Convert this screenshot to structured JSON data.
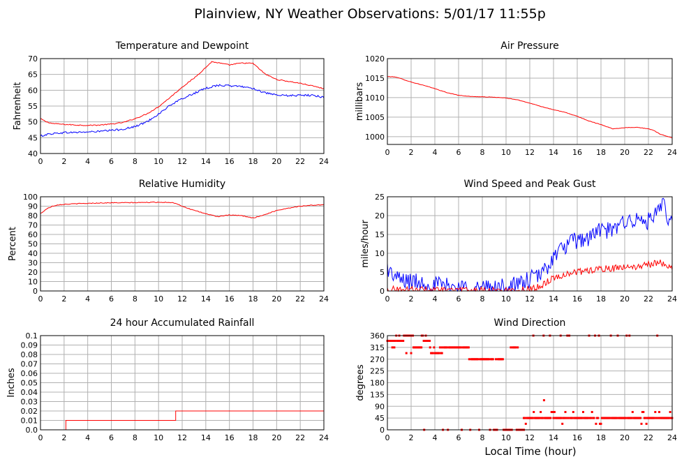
{
  "title": "Plainview, NY Weather Observations: 5/01/17 11:55p",
  "x_axis_label": "Local Time (hour)",
  "colors": {
    "primary": "#ff0000",
    "secondary": "#0000ff",
    "grid": "#b0b0b0",
    "frame": "#000000"
  },
  "chart_data": [
    {
      "id": "temperature",
      "type": "line",
      "title": "Temperature and Dewpoint",
      "xlabel": "",
      "ylabel": "Fahrenheit",
      "xlim": [
        0,
        24
      ],
      "ylim": [
        40,
        70
      ],
      "x_ticks": [
        "0",
        "2",
        "4",
        "6",
        "8",
        "10",
        "12",
        "14",
        "16",
        "18",
        "20",
        "22",
        "24"
      ],
      "y_ticks": [
        "40",
        "45",
        "50",
        "55",
        "60",
        "65",
        "70"
      ],
      "grid": true,
      "series": [
        {
          "color": "#ff0000",
          "noise": 0.15,
          "x": [
            0,
            0.5,
            1,
            2,
            3,
            4,
            5,
            6,
            7,
            8,
            9,
            10,
            11,
            12,
            13,
            14,
            14.5,
            15,
            16,
            17,
            18,
            19,
            20,
            21,
            22,
            23,
            24
          ],
          "y": [
            51,
            50,
            49.5,
            49.2,
            49,
            48.9,
            49,
            49.3,
            49.8,
            51,
            52.5,
            54.8,
            57.8,
            61,
            63.8,
            67.2,
            69,
            68.7,
            68,
            68.6,
            68.5,
            65.2,
            63.4,
            62.8,
            62.2,
            61.4,
            60.5
          ]
        },
        {
          "color": "#0000ff",
          "noise": 0.3,
          "x": [
            0,
            0.5,
            1,
            2,
            3,
            4,
            5,
            6,
            7,
            8,
            9,
            10,
            11,
            12,
            13,
            14,
            15,
            16,
            17,
            18,
            19,
            20,
            21,
            22,
            23,
            24
          ],
          "y": [
            45.5,
            46,
            46.3,
            46.6,
            46.7,
            46.8,
            47,
            47.3,
            47.7,
            48.5,
            50,
            52.5,
            55.3,
            57.3,
            59,
            60.6,
            61.6,
            61.4,
            61.2,
            60.6,
            59.2,
            58.4,
            58.3,
            58.4,
            58.4,
            57.8
          ]
        }
      ]
    },
    {
      "id": "pressure",
      "type": "line",
      "title": "Air Pressure",
      "xlabel": "",
      "ylabel": "millibars",
      "xlim": [
        0,
        24
      ],
      "ylim": [
        998,
        1020
      ],
      "x_ticks": [
        "0",
        "2",
        "4",
        "6",
        "8",
        "10",
        "12",
        "14",
        "16",
        "18",
        "20",
        "22",
        "24"
      ],
      "y_ticks": [
        "1000",
        "1005",
        "1010",
        "1015",
        "1020"
      ],
      "grid": true,
      "series": [
        {
          "color": "#ff0000",
          "noise": 0.05,
          "x": [
            0,
            0.7,
            1,
            2,
            3,
            4,
            5,
            6,
            7,
            8,
            9,
            10,
            11,
            12,
            13,
            14,
            15,
            16,
            17,
            18,
            19,
            20,
            21,
            22,
            22.5,
            23,
            24
          ],
          "y": [
            1015.4,
            1015.3,
            1015,
            1014,
            1013.2,
            1012.3,
            1011.3,
            1010.6,
            1010.3,
            1010.2,
            1010.1,
            1009.9,
            1009.4,
            1008.6,
            1007.7,
            1006.9,
            1006.2,
            1005.2,
            1004,
            1003.1,
            1002,
            1002.3,
            1002.4,
            1002,
            1001.5,
            1000.6,
            999.7
          ]
        }
      ]
    },
    {
      "id": "humidity",
      "type": "line",
      "title": "Relative Humidity",
      "xlabel": "",
      "ylabel": "Percent",
      "xlim": [
        0,
        24
      ],
      "ylim": [
        0,
        100
      ],
      "x_ticks": [
        "0",
        "2",
        "4",
        "6",
        "8",
        "10",
        "12",
        "14",
        "16",
        "18",
        "20",
        "22",
        "24"
      ],
      "y_ticks": [
        "0",
        "10",
        "20",
        "30",
        "40",
        "50",
        "60",
        "70",
        "80",
        "90",
        "100"
      ],
      "grid": true,
      "series": [
        {
          "color": "#ff0000",
          "noise": 0.4,
          "x": [
            0,
            0.5,
            1,
            1.5,
            2,
            3,
            4,
            5,
            6,
            7,
            8,
            9,
            10,
            11,
            11.5,
            12,
            13,
            14,
            15,
            16,
            17,
            18,
            19,
            20,
            21,
            22,
            23,
            24
          ],
          "y": [
            82,
            87,
            90,
            91.5,
            92,
            92.6,
            93,
            93.4,
            93.6,
            93.7,
            93.8,
            94,
            94.2,
            94,
            93,
            90,
            85.5,
            82,
            79,
            80.5,
            80,
            77.5,
            81,
            85.5,
            88,
            90,
            91,
            91.5
          ]
        }
      ]
    },
    {
      "id": "wind_speed",
      "type": "line",
      "title": "Wind Speed and Peak Gust",
      "xlabel": "",
      "ylabel": "miles/hour",
      "xlim": [
        0,
        24
      ],
      "ylim": [
        0,
        25
      ],
      "x_ticks": [
        "0",
        "2",
        "4",
        "6",
        "8",
        "10",
        "12",
        "14",
        "16",
        "18",
        "20",
        "22",
        "24"
      ],
      "y_ticks": [
        "0",
        "5",
        "10",
        "15",
        "20",
        "25"
      ],
      "grid": true,
      "series": [
        {
          "color": "#0000ff",
          "noise": 2.4,
          "x": [
            0,
            0.3,
            1,
            2,
            3,
            4,
            5,
            6,
            7,
            8,
            9,
            10,
            11,
            12,
            13,
            14,
            15,
            16,
            17,
            18,
            19,
            20,
            21,
            22,
            23,
            23.2,
            24
          ],
          "y": [
            6.5,
            4.5,
            3,
            2.5,
            2.2,
            1.8,
            1.2,
            1,
            0.9,
            0.8,
            0.8,
            1,
            1.6,
            3,
            4.5,
            9,
            12,
            13.5,
            14,
            16.5,
            15.5,
            19,
            18.5,
            18.5,
            21,
            23.5,
            17
          ]
        },
        {
          "color": "#ff0000",
          "noise": 0.9,
          "x": [
            0,
            1,
            2,
            3,
            4,
            5,
            6,
            7,
            8,
            9,
            10,
            11,
            12,
            13,
            14,
            15,
            16,
            17,
            18,
            19,
            20,
            21,
            22,
            23,
            24
          ],
          "y": [
            0.5,
            0.4,
            0.3,
            0.3,
            0.2,
            0.2,
            0.1,
            0.1,
            0.1,
            0.1,
            0.1,
            0.2,
            0.5,
            1.5,
            3.5,
            4.5,
            5,
            5.5,
            5.8,
            6,
            6.2,
            6.5,
            7,
            7.5,
            6.5
          ]
        }
      ]
    },
    {
      "id": "rainfall",
      "type": "line",
      "title": "24 hour Accumulated Rainfall",
      "xlabel": "",
      "ylabel": "Inches",
      "xlim": [
        0,
        24
      ],
      "ylim": [
        0,
        0.1
      ],
      "x_ticks": [
        "0",
        "2",
        "4",
        "6",
        "8",
        "10",
        "12",
        "14",
        "16",
        "18",
        "20",
        "22",
        "24"
      ],
      "y_ticks": [
        "0.0",
        "0.01",
        "0.02",
        "0.03",
        "0.04",
        "0.05",
        "0.06",
        "0.07",
        "0.08",
        "0.09",
        "0.1"
      ],
      "grid": true,
      "series": [
        {
          "color": "#ff0000",
          "noise": 0,
          "x": [
            0,
            2.15,
            2.15,
            11.45,
            11.45,
            24
          ],
          "y": [
            0,
            0,
            0.01,
            0.01,
            0.02,
            0.02
          ]
        }
      ]
    },
    {
      "id": "wind_direction",
      "type": "scatter",
      "title": "Wind Direction",
      "xlabel": "Local Time (hour)",
      "ylabel": "degrees",
      "xlim": [
        0,
        24
      ],
      "ylim": [
        0,
        360
      ],
      "x_ticks": [
        "0",
        "2",
        "4",
        "6",
        "8",
        "10",
        "12",
        "14",
        "16",
        "18",
        "20",
        "22",
        "24"
      ],
      "y_ticks": [
        "0",
        "45",
        "90",
        "135",
        "180",
        "225",
        "270",
        "315",
        "360"
      ],
      "grid": true,
      "series": [
        {
          "color": "#ff0000",
          "segments": [
            {
              "x0": 0.0,
              "x1": 1.4,
              "y": 340,
              "alt": [
                360,
                315
              ]
            },
            {
              "x0": 1.4,
              "x1": 2.2,
              "y": 360,
              "alt": [
                315,
                340
              ]
            },
            {
              "x0": 2.2,
              "x1": 2.9,
              "y": 315,
              "alt": [
                360
              ]
            },
            {
              "x0": 2.9,
              "x1": 3.6,
              "y": 340,
              "alt": [
                360
              ]
            },
            {
              "x0": 3.6,
              "x1": 4.6,
              "y": 293,
              "alt": [
                315
              ]
            },
            {
              "x0": 4.6,
              "x1": 6.9,
              "y": 315,
              "alt": [
                0
              ]
            },
            {
              "x0": 6.9,
              "x1": 9.8,
              "y": 270,
              "alt": [
                0
              ]
            },
            {
              "x0": 9.8,
              "x1": 10.4,
              "y": 0,
              "alt": [
                270
              ]
            },
            {
              "x0": 10.4,
              "x1": 11.0,
              "y": 315,
              "alt": [
                0
              ]
            },
            {
              "x0": 11.0,
              "x1": 11.5,
              "y": 0,
              "alt": [
                23
              ]
            },
            {
              "x0": 11.5,
              "x1": 24.0,
              "y": 45,
              "alt": [
                23,
                68,
                360
              ]
            }
          ],
          "points": [
            {
              "x": 13.2,
              "y": 113
            },
            {
              "x": 12.3,
              "y": 360
            },
            {
              "x": 13.7,
              "y": 360
            },
            {
              "x": 14.6,
              "y": 360
            },
            {
              "x": 20.4,
              "y": 360
            },
            {
              "x": 1.6,
              "y": 293
            },
            {
              "x": 2.0,
              "y": 293
            },
            {
              "x": 3.1,
              "y": 0
            }
          ]
        }
      ]
    }
  ]
}
